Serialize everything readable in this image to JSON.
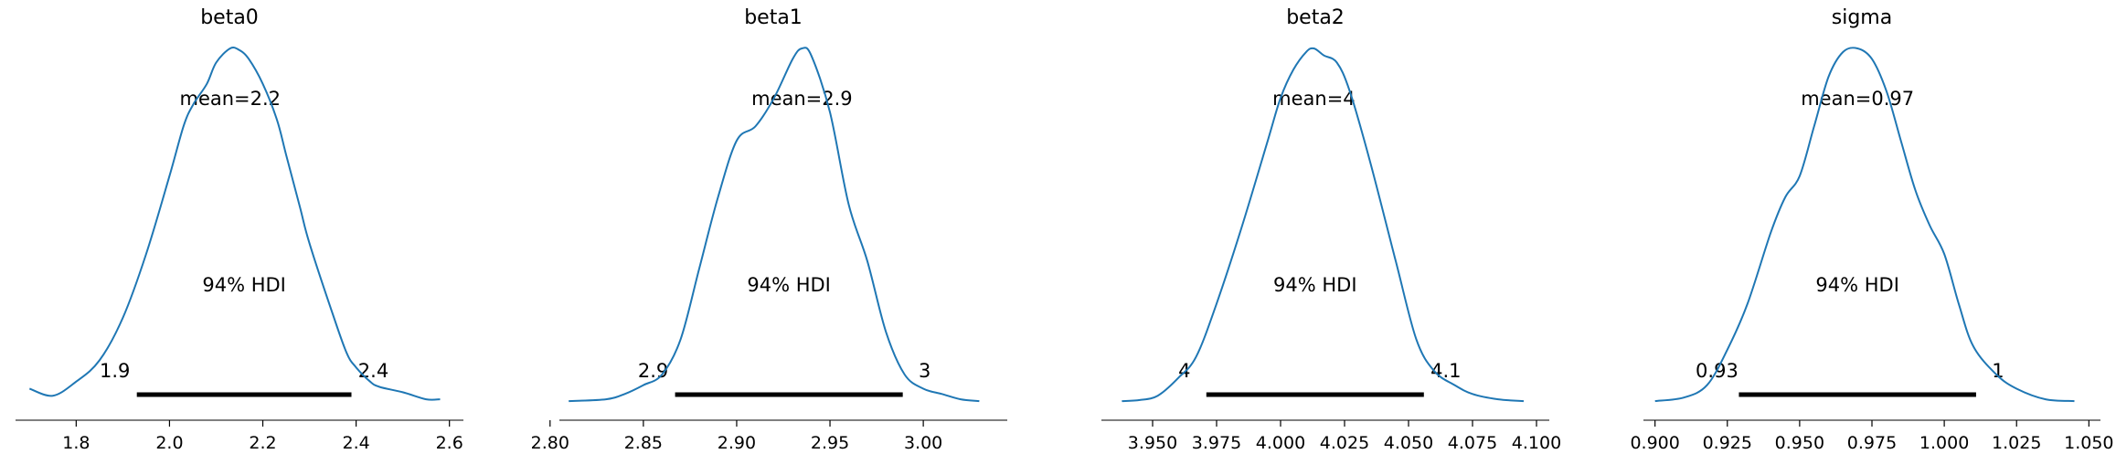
{
  "colors": {
    "line": "#1f77b4",
    "hdi": "#000000",
    "axis": "#000000"
  },
  "chart_data": [
    {
      "type": "line",
      "title": "beta0",
      "xlim": [
        1.67,
        2.63
      ],
      "ticks": [
        1.8,
        2.0,
        2.2,
        2.4,
        2.6
      ],
      "tick_labels": [
        "1.8",
        "2.0",
        "2.2",
        "2.4",
        "2.6"
      ],
      "mean_label": "mean=2.2",
      "hdi_label": "94% HDI",
      "hdi": [
        1.93,
        2.39
      ],
      "hdi_low_label": "1.9",
      "hdi_high_label": "2.4",
      "density": {
        "x": [
          1.7,
          1.75,
          1.8,
          1.85,
          1.9,
          1.95,
          2.0,
          2.03,
          2.05,
          2.08,
          2.1,
          2.13,
          2.15,
          2.17,
          2.2,
          2.23,
          2.25,
          2.28,
          2.3,
          2.35,
          2.38,
          2.4,
          2.43,
          2.45,
          2.5,
          2.55,
          2.58
        ],
        "y": [
          0.04,
          0.02,
          0.06,
          0.12,
          0.24,
          0.42,
          0.64,
          0.78,
          0.84,
          0.9,
          0.96,
          1.0,
          0.995,
          0.97,
          0.9,
          0.8,
          0.7,
          0.55,
          0.45,
          0.25,
          0.14,
          0.1,
          0.06,
          0.045,
          0.03,
          0.01,
          0.01
        ]
      }
    },
    {
      "type": "line",
      "title": "beta1",
      "xlim": [
        2.805,
        3.045
      ],
      "ticks": [
        2.8,
        2.85,
        2.9,
        2.95,
        3.0
      ],
      "tick_labels": [
        "2.80",
        "2.85",
        "2.90",
        "2.95",
        "3.00"
      ],
      "mean_label": "mean=2.9",
      "hdi_label": "94% HDI",
      "hdi": [
        2.867,
        2.989
      ],
      "hdi_low_label": "2.9",
      "hdi_high_label": "3",
      "density": {
        "x": [
          2.81,
          2.83,
          2.84,
          2.85,
          2.86,
          2.87,
          2.88,
          2.89,
          2.9,
          2.91,
          2.92,
          2.93,
          2.935,
          2.94,
          2.95,
          2.96,
          2.97,
          2.98,
          2.99,
          3.0,
          3.01,
          3.02,
          3.03
        ],
        "y": [
          0.005,
          0.01,
          0.025,
          0.05,
          0.08,
          0.18,
          0.38,
          0.58,
          0.74,
          0.78,
          0.86,
          0.97,
          1.0,
          0.98,
          0.82,
          0.56,
          0.4,
          0.2,
          0.08,
          0.04,
          0.025,
          0.01,
          0.005
        ]
      }
    },
    {
      "type": "line",
      "title": "beta2",
      "xlim": [
        3.93,
        4.105
      ],
      "ticks": [
        3.95,
        3.975,
        4.0,
        4.025,
        4.05,
        4.075,
        4.1
      ],
      "tick_labels": [
        "3.950",
        "3.975",
        "4.000",
        "4.025",
        "4.050",
        "4.075",
        "4.100"
      ],
      "mean_label": "mean=4",
      "hdi_label": "94% HDI",
      "hdi": [
        3.971,
        4.056
      ],
      "hdi_low_label": "4",
      "hdi_high_label": "4.1",
      "density": {
        "x": [
          3.938,
          3.945,
          3.952,
          3.96,
          3.967,
          3.975,
          3.985,
          3.995,
          4.0,
          4.005,
          4.01,
          4.013,
          4.017,
          4.022,
          4.027,
          4.035,
          4.045,
          4.053,
          4.06,
          4.068,
          4.075,
          4.085,
          4.095
        ],
        "y": [
          0.005,
          0.008,
          0.02,
          0.07,
          0.13,
          0.28,
          0.5,
          0.74,
          0.86,
          0.94,
          0.99,
          1.0,
          0.98,
          0.96,
          0.88,
          0.68,
          0.4,
          0.18,
          0.09,
          0.05,
          0.025,
          0.01,
          0.005
        ]
      }
    },
    {
      "type": "line",
      "title": "sigma",
      "xlim": [
        0.896,
        1.054
      ],
      "ticks": [
        0.9,
        0.925,
        0.95,
        0.975,
        1.0,
        1.025,
        1.05
      ],
      "tick_labels": [
        "0.900",
        "0.925",
        "0.950",
        "0.975",
        "1.000",
        "1.025",
        "1.050"
      ],
      "mean_label": "mean=0.97",
      "hdi_label": "94% HDI",
      "hdi": [
        0.929,
        1.011
      ],
      "hdi_low_label": "0.93",
      "hdi_high_label": "1",
      "density": {
        "x": [
          0.9,
          0.91,
          0.918,
          0.925,
          0.932,
          0.94,
          0.945,
          0.95,
          0.955,
          0.96,
          0.965,
          0.97,
          0.975,
          0.98,
          0.985,
          0.99,
          0.995,
          1.0,
          1.005,
          1.01,
          1.018,
          1.025,
          1.035,
          1.045
        ],
        "y": [
          0.005,
          0.015,
          0.05,
          0.15,
          0.28,
          0.48,
          0.58,
          0.64,
          0.78,
          0.92,
          0.99,
          1.0,
          0.97,
          0.88,
          0.74,
          0.6,
          0.5,
          0.42,
          0.28,
          0.16,
          0.08,
          0.04,
          0.01,
          0.005
        ]
      }
    }
  ]
}
